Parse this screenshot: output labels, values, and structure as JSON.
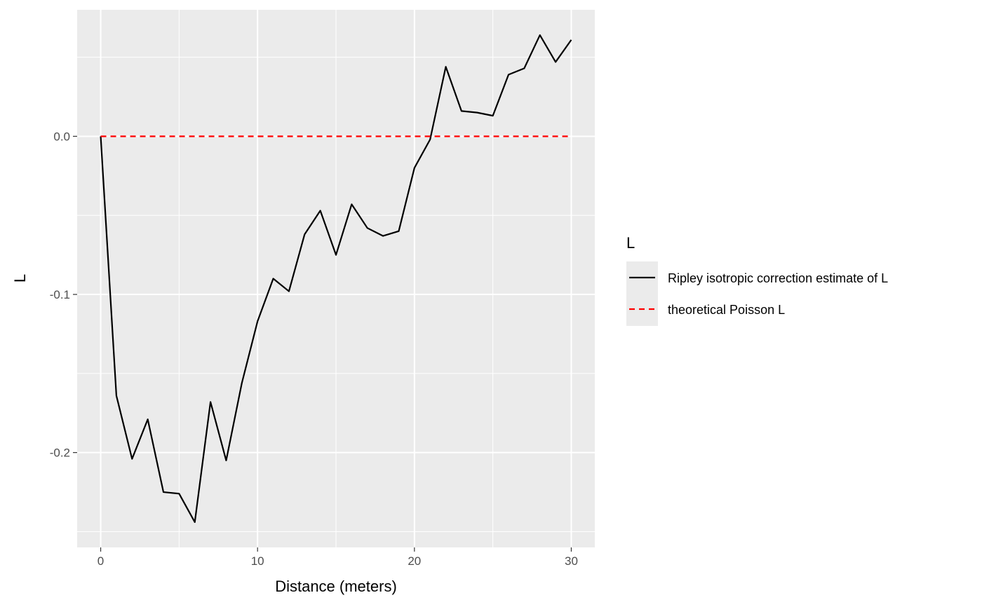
{
  "chart_data": {
    "type": "line",
    "title": "",
    "xlabel": "Distance (meters)",
    "ylabel": "L",
    "xlim": [
      -1.5,
      31.5
    ],
    "ylim": [
      -0.26,
      0.08
    ],
    "x_ticks": [
      0,
      10,
      20,
      30
    ],
    "x_tick_labels": [
      "0",
      "10",
      "20",
      "30"
    ],
    "y_ticks": [
      -0.2,
      -0.1,
      0.0
    ],
    "y_tick_labels": [
      "-0.2",
      "-0.1",
      "0.0"
    ],
    "grid": true,
    "legend": {
      "title": "L",
      "placement": "right",
      "items": [
        {
          "label": "Ripley isotropic correction estimate of L",
          "color": "#000000",
          "dash": "solid"
        },
        {
          "label": "theoretical Poisson L",
          "color": "#ff0000",
          "dash": "dashed"
        }
      ]
    },
    "series": [
      {
        "name": "Ripley isotropic correction estimate of L",
        "color": "#000000",
        "dash": "solid",
        "x": [
          0,
          1,
          2,
          3,
          4,
          5,
          6,
          7,
          8,
          9,
          10,
          11,
          12,
          13,
          14,
          15,
          16,
          17,
          18,
          19,
          20,
          21,
          22,
          23,
          24,
          25,
          26,
          27,
          28,
          29,
          30
        ],
        "y": [
          0.0,
          -0.164,
          -0.204,
          -0.179,
          -0.225,
          -0.226,
          -0.244,
          -0.168,
          -0.205,
          -0.156,
          -0.117,
          -0.09,
          -0.098,
          -0.062,
          -0.047,
          -0.075,
          -0.043,
          -0.058,
          -0.063,
          -0.06,
          -0.02,
          -0.002,
          0.044,
          0.016,
          0.015,
          0.013,
          0.039,
          0.043,
          0.064,
          0.047,
          0.061
        ]
      },
      {
        "name": "theoretical Poisson L",
        "color": "#ff0000",
        "dash": "dashed",
        "x": [
          0,
          30
        ],
        "y": [
          0.0,
          0.0
        ]
      }
    ]
  }
}
